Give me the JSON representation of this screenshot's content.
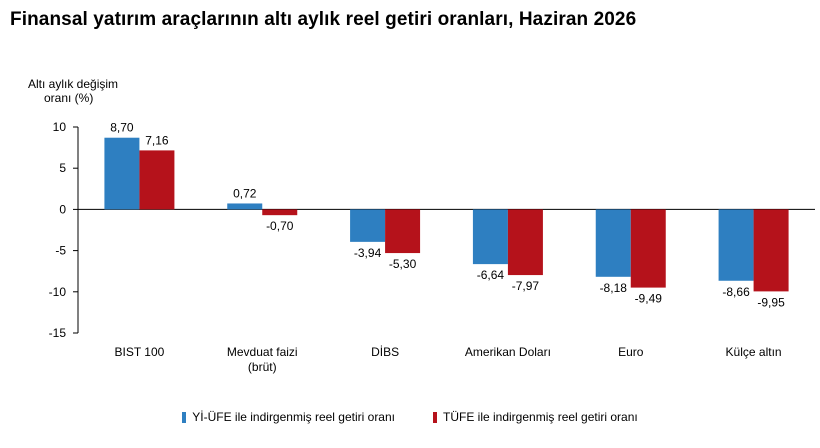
{
  "chart_data": {
    "type": "bar",
    "title": "Finansal yatırım araçlarının altı aylık reel getiri oranları, Haziran 2026",
    "ylabel_lines": [
      "Altı aylık değişim",
      "oranı (%)"
    ],
    "xlabel": "",
    "ylim": [
      -15,
      10
    ],
    "yticks": [
      10,
      5,
      0,
      -5,
      -10,
      -15
    ],
    "categories": [
      [
        "BIST 100"
      ],
      [
        "Mevduat faizi",
        "(brüt)"
      ],
      [
        "DİBS"
      ],
      [
        "Amerikan Doları"
      ],
      [
        "Euro"
      ],
      [
        "Külçe altın"
      ]
    ],
    "series": [
      {
        "name": "Yİ-ÜFE ile indirgenmiş reel getiri oranı",
        "color": "#2e7fc1",
        "values": [
          8.7,
          0.72,
          -3.94,
          -6.64,
          -8.18,
          -8.66
        ],
        "labels": [
          "8,70",
          "0,72",
          "-3,94",
          "-6,64",
          "-8,18",
          "-8,66"
        ]
      },
      {
        "name": "TÜFE ile indirgenmiş reel getiri oranı",
        "color": "#b5121b",
        "values": [
          7.16,
          -0.7,
          -5.3,
          -7.97,
          -9.49,
          -9.95
        ],
        "labels": [
          "7,16",
          "-0,70",
          "-5,30",
          "-7,97",
          "-9,49",
          "-9,95"
        ]
      }
    ],
    "grid": false,
    "legend_position": "bottom"
  }
}
